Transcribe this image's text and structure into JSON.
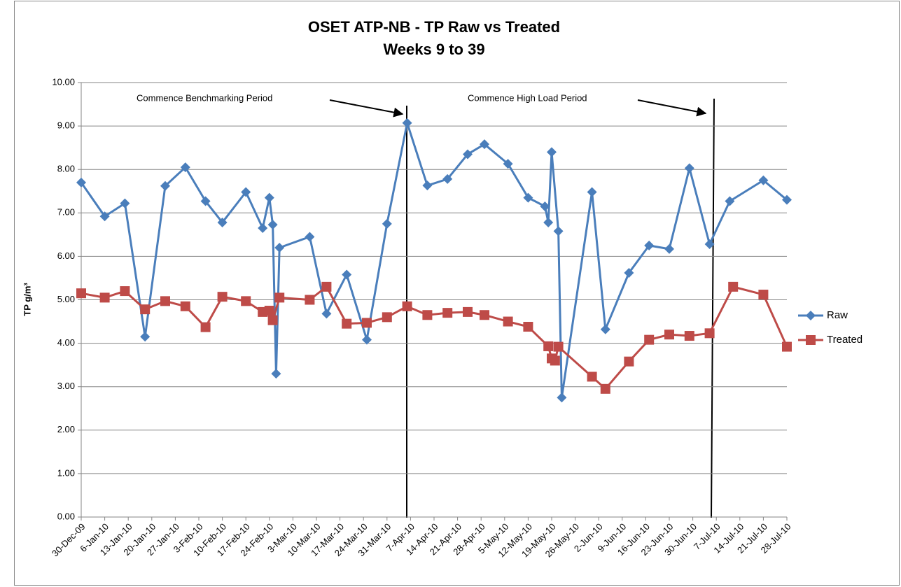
{
  "chart_data": {
    "type": "line",
    "title": "OSET ATP-NB - TP Raw vs Treated",
    "subtitle": "Weeks 9 to 39",
    "y_label": "TP g/m³",
    "annotations": [
      "Commence Benchmarking Period",
      "Commence High Load Period"
    ],
    "xlim": [
      "2009-12-30",
      "2010-07-28"
    ],
    "xticks": [
      {
        "value": "2009-12-30",
        "label": "30-Dec-09"
      },
      {
        "value": "2010-01-06",
        "label": "6-Jan-10"
      },
      {
        "value": "2010-01-13",
        "label": "13-Jan-10"
      },
      {
        "value": "2010-01-20",
        "label": "20-Jan-10"
      },
      {
        "value": "2010-01-27",
        "label": "27-Jan-10"
      },
      {
        "value": "2010-02-03",
        "label": "3-Feb-10"
      },
      {
        "value": "2010-02-10",
        "label": "10-Feb-10"
      },
      {
        "value": "2010-02-17",
        "label": "17-Feb-10"
      },
      {
        "value": "2010-02-24",
        "label": "24-Feb-10"
      },
      {
        "value": "2010-03-03",
        "label": "3-Mar-10"
      },
      {
        "value": "2010-03-10",
        "label": "10-Mar-10"
      },
      {
        "value": "2010-03-17",
        "label": "17-Mar-10"
      },
      {
        "value": "2010-03-24",
        "label": "24-Mar-10"
      },
      {
        "value": "2010-03-31",
        "label": "31-Mar-10"
      },
      {
        "value": "2010-04-07",
        "label": "7-Apr-10"
      },
      {
        "value": "2010-04-14",
        "label": "14-Apr-10"
      },
      {
        "value": "2010-04-21",
        "label": "21-Apr-10"
      },
      {
        "value": "2010-04-28",
        "label": "28-Apr-10"
      },
      {
        "value": "2010-05-05",
        "label": "5-May-10"
      },
      {
        "value": "2010-05-12",
        "label": "12-May-10"
      },
      {
        "value": "2010-05-19",
        "label": "19-May-10"
      },
      {
        "value": "2010-05-26",
        "label": "26-May-10"
      },
      {
        "value": "2010-06-02",
        "label": "2-Jun-10"
      },
      {
        "value": "2010-06-09",
        "label": "9-Jun-10"
      },
      {
        "value": "2010-06-16",
        "label": "16-Jun-10"
      },
      {
        "value": "2010-06-23",
        "label": "23-Jun-10"
      },
      {
        "value": "2010-06-30",
        "label": "30-Jun-10"
      },
      {
        "value": "2010-07-07",
        "label": "7-Jul-10"
      },
      {
        "value": "2010-07-14",
        "label": "14-Jul-10"
      },
      {
        "value": "2010-07-21",
        "label": "21-Jul-10"
      },
      {
        "value": "2010-07-28",
        "label": "28-Jul-10"
      }
    ],
    "ylim": [
      0,
      10
    ],
    "yticks": [
      {
        "value": 0,
        "label": "0.00"
      },
      {
        "value": 1,
        "label": "1.00"
      },
      {
        "value": 2,
        "label": "2.00"
      },
      {
        "value": 3,
        "label": "3.00"
      },
      {
        "value": 4,
        "label": "4.00"
      },
      {
        "value": 5,
        "label": "5.00"
      },
      {
        "value": 6,
        "label": "6.00"
      },
      {
        "value": 7,
        "label": "7.00"
      },
      {
        "value": 8,
        "label": "8.00"
      },
      {
        "value": 9,
        "label": "9.00"
      },
      {
        "value": 10,
        "label": "10.00"
      }
    ],
    "grid": true,
    "legend": "right",
    "series": [
      {
        "name": "Raw",
        "color": "#4a7ebb",
        "marker": "diamond",
        "x": [
          "2009-12-30",
          "2010-01-06",
          "2010-01-12",
          "2010-01-18",
          "2010-01-24",
          "2010-01-30",
          "2010-02-05",
          "2010-02-10",
          "2010-02-17",
          "2010-02-22",
          "2010-02-24",
          "2010-02-25",
          "2010-02-26",
          "2010-02-27",
          "2010-03-08",
          "2010-03-13",
          "2010-03-19",
          "2010-03-25",
          "2010-03-31",
          "2010-04-06",
          "2010-04-12",
          "2010-04-18",
          "2010-04-24",
          "2010-04-29",
          "2010-05-06",
          "2010-05-12",
          "2010-05-17",
          "2010-05-18",
          "2010-05-19",
          "2010-05-21",
          "2010-05-22",
          "2010-05-31",
          "2010-06-04",
          "2010-06-11",
          "2010-06-17",
          "2010-06-23",
          "2010-06-29",
          "2010-07-05",
          "2010-07-11",
          "2010-07-21",
          "2010-07-28"
        ],
        "values": [
          7.7,
          6.92,
          7.22,
          4.15,
          7.62,
          8.05,
          7.27,
          6.78,
          7.48,
          6.65,
          7.35,
          6.73,
          3.3,
          6.2,
          6.45,
          4.68,
          5.58,
          4.08,
          6.75,
          9.07,
          7.63,
          7.78,
          8.35,
          8.58,
          8.13,
          7.35,
          7.15,
          6.78,
          8.4,
          6.58,
          2.75,
          7.48,
          4.32,
          5.62,
          6.25,
          6.17,
          8.03,
          6.28,
          7.27,
          7.75,
          7.3
        ]
      },
      {
        "name": "Treated",
        "color": "#be4b48",
        "marker": "square",
        "x": [
          "2009-12-30",
          "2010-01-06",
          "2010-01-12",
          "2010-01-18",
          "2010-01-24",
          "2010-01-30",
          "2010-02-05",
          "2010-02-10",
          "2010-02-17",
          "2010-02-22",
          "2010-02-24",
          "2010-02-25",
          "2010-02-27",
          "2010-03-08",
          "2010-03-13",
          "2010-03-19",
          "2010-03-25",
          "2010-03-31",
          "2010-04-06",
          "2010-04-12",
          "2010-04-18",
          "2010-04-24",
          "2010-04-29",
          "2010-05-06",
          "2010-05-12",
          "2010-05-18",
          "2010-05-19",
          "2010-05-20",
          "2010-05-21",
          "2010-05-31",
          "2010-06-04",
          "2010-06-11",
          "2010-06-17",
          "2010-06-23",
          "2010-06-29",
          "2010-07-05",
          "2010-07-12",
          "2010-07-21",
          "2010-07-28"
        ],
        "values": [
          5.15,
          5.05,
          5.2,
          4.78,
          4.97,
          4.85,
          4.37,
          5.07,
          4.97,
          4.72,
          4.75,
          4.53,
          5.05,
          5.0,
          5.3,
          4.45,
          4.47,
          4.6,
          4.85,
          4.65,
          4.7,
          4.72,
          4.65,
          4.5,
          4.38,
          3.93,
          3.65,
          3.6,
          3.92,
          3.23,
          2.95,
          3.58,
          4.08,
          4.2,
          4.17,
          4.23,
          5.3,
          5.12,
          3.92
        ]
      }
    ]
  }
}
